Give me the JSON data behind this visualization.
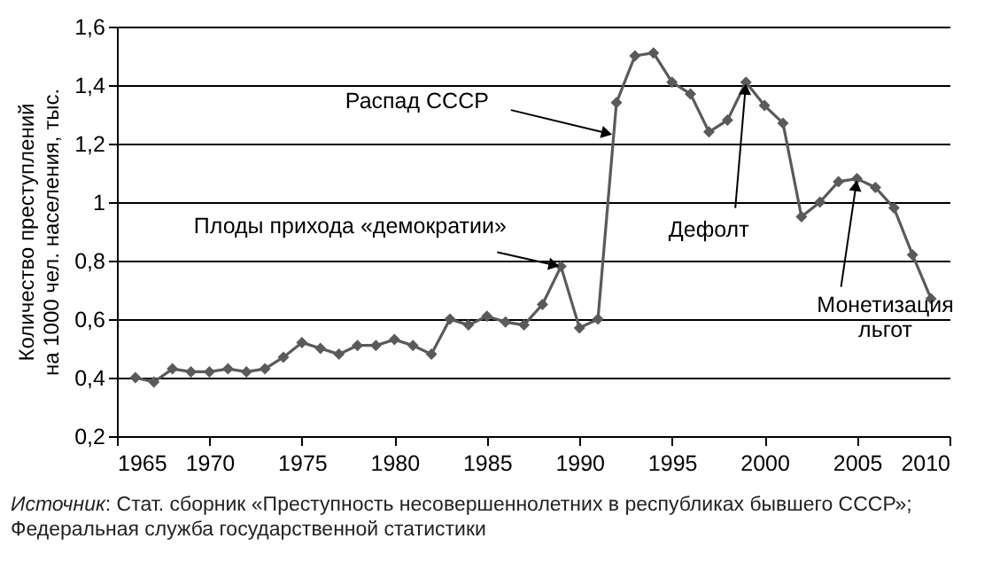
{
  "chart_data": {
    "type": "line",
    "ylabel": "Количество преступлений\nна 1000 чел. населения, тыс.",
    "x": [
      1966,
      1967,
      1968,
      1969,
      1970,
      1971,
      1972,
      1973,
      1974,
      1975,
      1976,
      1977,
      1978,
      1979,
      1980,
      1981,
      1982,
      1983,
      1984,
      1985,
      1986,
      1987,
      1988,
      1989,
      1990,
      1991,
      1992,
      1993,
      1994,
      1995,
      1996,
      1997,
      1998,
      1999,
      2000,
      2001,
      2002,
      2003,
      2004,
      2005,
      2006,
      2007,
      2008,
      2009
    ],
    "series": [
      {
        "color": "#5a5a5a",
        "values": [
          0.4,
          0.385,
          0.43,
          0.42,
          0.42,
          0.43,
          0.42,
          0.43,
          0.47,
          0.52,
          0.5,
          0.48,
          0.51,
          0.51,
          0.53,
          0.51,
          0.48,
          0.6,
          0.58,
          0.61,
          0.59,
          0.58,
          0.65,
          0.78,
          0.57,
          0.6,
          1.34,
          1.5,
          1.51,
          1.41,
          1.37,
          1.24,
          1.28,
          1.41,
          1.33,
          1.27,
          0.95,
          1.0,
          1.07,
          1.08,
          1.05,
          0.98,
          0.82,
          0.67
        ]
      }
    ],
    "xlim": [
      1965,
      2010
    ],
    "xticks": [
      1965,
      1970,
      1975,
      1980,
      1985,
      1990,
      1995,
      2000,
      2005,
      2010
    ],
    "ylim": [
      0.2,
      1.6
    ],
    "yticks": [
      {
        "value": 0.2,
        "label": "0,2"
      },
      {
        "value": 0.4,
        "label": "0,4"
      },
      {
        "value": 0.6,
        "label": "0,6"
      },
      {
        "value": 0.8,
        "label": "0,8"
      },
      {
        "value": 1,
        "label": "1"
      },
      {
        "value": 1.2,
        "label": "1,2"
      },
      {
        "value": 1.4,
        "label": "1,4"
      },
      {
        "value": 1.6,
        "label": "1,6"
      }
    ],
    "grid": "y",
    "marker": "diamond",
    "line_style": "solid",
    "annotations": [
      {
        "text": "Распад СССР",
        "x": 1991.85,
        "y": 1.23
      },
      {
        "text": "Плоды прихода «демократии»",
        "x": 1989,
        "y": 0.78
      },
      {
        "text": "Дефолт",
        "x": 1999,
        "y": 1.41
      },
      {
        "text": "Монетизация\nльгот",
        "x": 2005,
        "y": 1.08
      },
      "Источник: Стат. сборник «Преступность несовершеннолетних в республиках бывшего СССР»; Федеральная служба государственной статистики"
    ]
  }
}
